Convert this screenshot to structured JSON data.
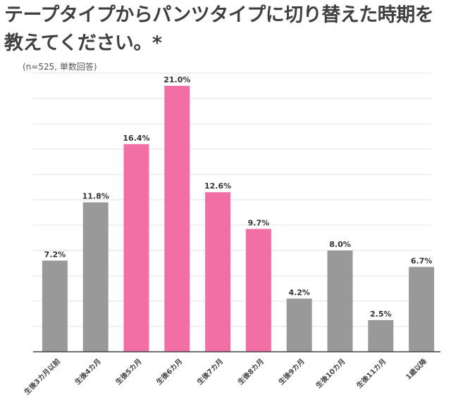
{
  "chart_data": {
    "type": "bar",
    "title": "テープタイプからパンツタイプに切り替えた時期を教えてください。*",
    "subtitle": "(n=525, 単数回答)",
    "categories": [
      "生後3カ月以前",
      "生後4カ月",
      "生後5カ月",
      "生後6カ月",
      "生後7カ月",
      "生後8カ月",
      "生後9カ月",
      "生後10カ月",
      "生後11カ月",
      "1歳以降"
    ],
    "values": [
      7.2,
      11.8,
      16.4,
      21.0,
      12.6,
      9.7,
      4.2,
      8.0,
      2.5,
      6.7
    ],
    "data_labels": [
      "7.2%",
      "11.8%",
      "16.4%",
      "21.0%",
      "12.6%",
      "9.7%",
      "4.2%",
      "8.0%",
      "2.5%",
      "6.7%"
    ],
    "highlighted": [
      false,
      false,
      true,
      true,
      true,
      true,
      false,
      false,
      false,
      false
    ],
    "ylim": [
      0,
      22
    ],
    "grid_step": 2,
    "grid": true,
    "y_tick_labels_shown": false,
    "xlabel": "",
    "ylabel": "",
    "colors": {
      "highlight": "#f26fa5",
      "default": "#999999",
      "grid": "#e6e6e6",
      "axis": "#444444"
    }
  }
}
